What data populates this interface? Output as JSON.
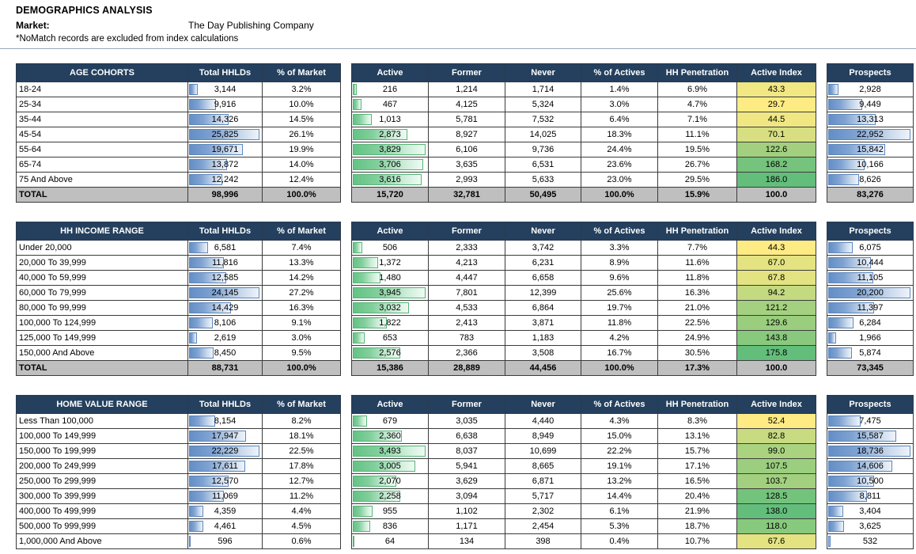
{
  "header": {
    "title": "DEMOGRAPHICS ANALYSIS",
    "market_label": "Market:",
    "market_value": "The Day Publishing Company",
    "note": "*NoMatch records are excluded from index calculations"
  },
  "column_headers": {
    "total_hhlds": "Total HHLDs",
    "pct_market": "% of Market",
    "active": "Active",
    "former": "Former",
    "never": "Never",
    "pct_actives": "% of Actives",
    "hh_penetration": "HH Penetration",
    "active_index": "Active Index",
    "prospects": "Prospects"
  },
  "colors": {
    "header_bg": "#24405e",
    "total_row_bg": "#bfbfbf",
    "bar_blue": "#638EC6",
    "bar_green": "#63C384",
    "index_scale_min": "#FFEB84",
    "index_scale_max": "#63BE7B"
  },
  "row_fields": [
    "category",
    "total_hhlds",
    "pct_market",
    "active",
    "former",
    "never",
    "pct_actives",
    "hh_penetration",
    "active_index",
    "prospects"
  ],
  "tables": [
    {
      "label": "AGE COHORTS",
      "rows": [
        [
          "18-24",
          "3,144",
          "3.2%",
          "216",
          "1,214",
          "1,714",
          "1.4%",
          "6.9%",
          "43.3",
          "2,928"
        ],
        [
          "25-34",
          "9,916",
          "10.0%",
          "467",
          "4,125",
          "5,324",
          "3.0%",
          "4.7%",
          "29.7",
          "9,449"
        ],
        [
          "35-44",
          "14,326",
          "14.5%",
          "1,013",
          "5,781",
          "7,532",
          "6.4%",
          "7.1%",
          "44.5",
          "13,313"
        ],
        [
          "45-54",
          "25,825",
          "26.1%",
          "2,873",
          "8,927",
          "14,025",
          "18.3%",
          "11.1%",
          "70.1",
          "22,952"
        ],
        [
          "55-64",
          "19,671",
          "19.9%",
          "3,829",
          "6,106",
          "9,736",
          "24.4%",
          "19.5%",
          "122.6",
          "15,842"
        ],
        [
          "65-74",
          "13,872",
          "14.0%",
          "3,706",
          "3,635",
          "6,531",
          "23.6%",
          "26.7%",
          "168.2",
          "10,166"
        ],
        [
          "75 And Above",
          "12,242",
          "12.4%",
          "3,616",
          "2,993",
          "5,633",
          "23.0%",
          "29.5%",
          "186.0",
          "8,626"
        ]
      ],
      "total": [
        "TOTAL",
        "98,996",
        "100.0%",
        "15,720",
        "32,781",
        "50,495",
        "100.0%",
        "15.9%",
        "100.0",
        "83,276"
      ]
    },
    {
      "label": "HH INCOME RANGE",
      "rows": [
        [
          "Under 20,000",
          "6,581",
          "7.4%",
          "506",
          "2,333",
          "3,742",
          "3.3%",
          "7.7%",
          "44.3",
          "6,075"
        ],
        [
          "20,000 To 39,999",
          "11,816",
          "13.3%",
          "1,372",
          "4,213",
          "6,231",
          "8.9%",
          "11.6%",
          "67.0",
          "10,444"
        ],
        [
          "40,000 To 59,999",
          "12,585",
          "14.2%",
          "1,480",
          "4,447",
          "6,658",
          "9.6%",
          "11.8%",
          "67.8",
          "11,105"
        ],
        [
          "60,000 To 79,999",
          "24,145",
          "27.2%",
          "3,945",
          "7,801",
          "12,399",
          "25.6%",
          "16.3%",
          "94.2",
          "20,200"
        ],
        [
          "80,000 To 99,999",
          "14,429",
          "16.3%",
          "3,032",
          "4,533",
          "6,864",
          "19.7%",
          "21.0%",
          "121.2",
          "11,397"
        ],
        [
          "100,000 To 124,999",
          "8,106",
          "9.1%",
          "1,822",
          "2,413",
          "3,871",
          "11.8%",
          "22.5%",
          "129.6",
          "6,284"
        ],
        [
          "125,000 To 149,999",
          "2,619",
          "3.0%",
          "653",
          "783",
          "1,183",
          "4.2%",
          "24.9%",
          "143.8",
          "1,966"
        ],
        [
          "150,000 And Above",
          "8,450",
          "9.5%",
          "2,576",
          "2,366",
          "3,508",
          "16.7%",
          "30.5%",
          "175.8",
          "5,874"
        ]
      ],
      "total": [
        "TOTAL",
        "88,731",
        "100.0%",
        "15,386",
        "28,889",
        "44,456",
        "100.0%",
        "17.3%",
        "100.0",
        "73,345"
      ]
    },
    {
      "label": "HOME VALUE RANGE",
      "rows": [
        [
          "Less Than 100,000",
          "8,154",
          "8.2%",
          "679",
          "3,035",
          "4,440",
          "4.3%",
          "8.3%",
          "52.4",
          "7,475"
        ],
        [
          "100,000 To 149,999",
          "17,947",
          "18.1%",
          "2,360",
          "6,638",
          "8,949",
          "15.0%",
          "13.1%",
          "82.8",
          "15,587"
        ],
        [
          "150,000 To 199,999",
          "22,229",
          "22.5%",
          "3,493",
          "8,037",
          "10,699",
          "22.2%",
          "15.7%",
          "99.0",
          "18,736"
        ],
        [
          "200,000 To 249,999",
          "17,611",
          "17.8%",
          "3,005",
          "5,941",
          "8,665",
          "19.1%",
          "17.1%",
          "107.5",
          "14,606"
        ],
        [
          "250,000 To 299,999",
          "12,570",
          "12.7%",
          "2,070",
          "3,629",
          "6,871",
          "13.2%",
          "16.5%",
          "103.7",
          "10,500"
        ],
        [
          "300,000 To 399,999",
          "11,069",
          "11.2%",
          "2,258",
          "3,094",
          "5,717",
          "14.4%",
          "20.4%",
          "128.5",
          "8,811"
        ],
        [
          "400,000 To 499,999",
          "4,359",
          "4.4%",
          "955",
          "1,102",
          "2,302",
          "6.1%",
          "21.9%",
          "138.0",
          "3,404"
        ],
        [
          "500,000 To 999,999",
          "4,461",
          "4.5%",
          "836",
          "1,171",
          "2,454",
          "5.3%",
          "18.7%",
          "118.0",
          "3,625"
        ],
        [
          "1,000,000 And Above",
          "596",
          "0.6%",
          "64",
          "134",
          "398",
          "0.4%",
          "10.7%",
          "67.6",
          "532"
        ]
      ],
      "total": null
    }
  ]
}
